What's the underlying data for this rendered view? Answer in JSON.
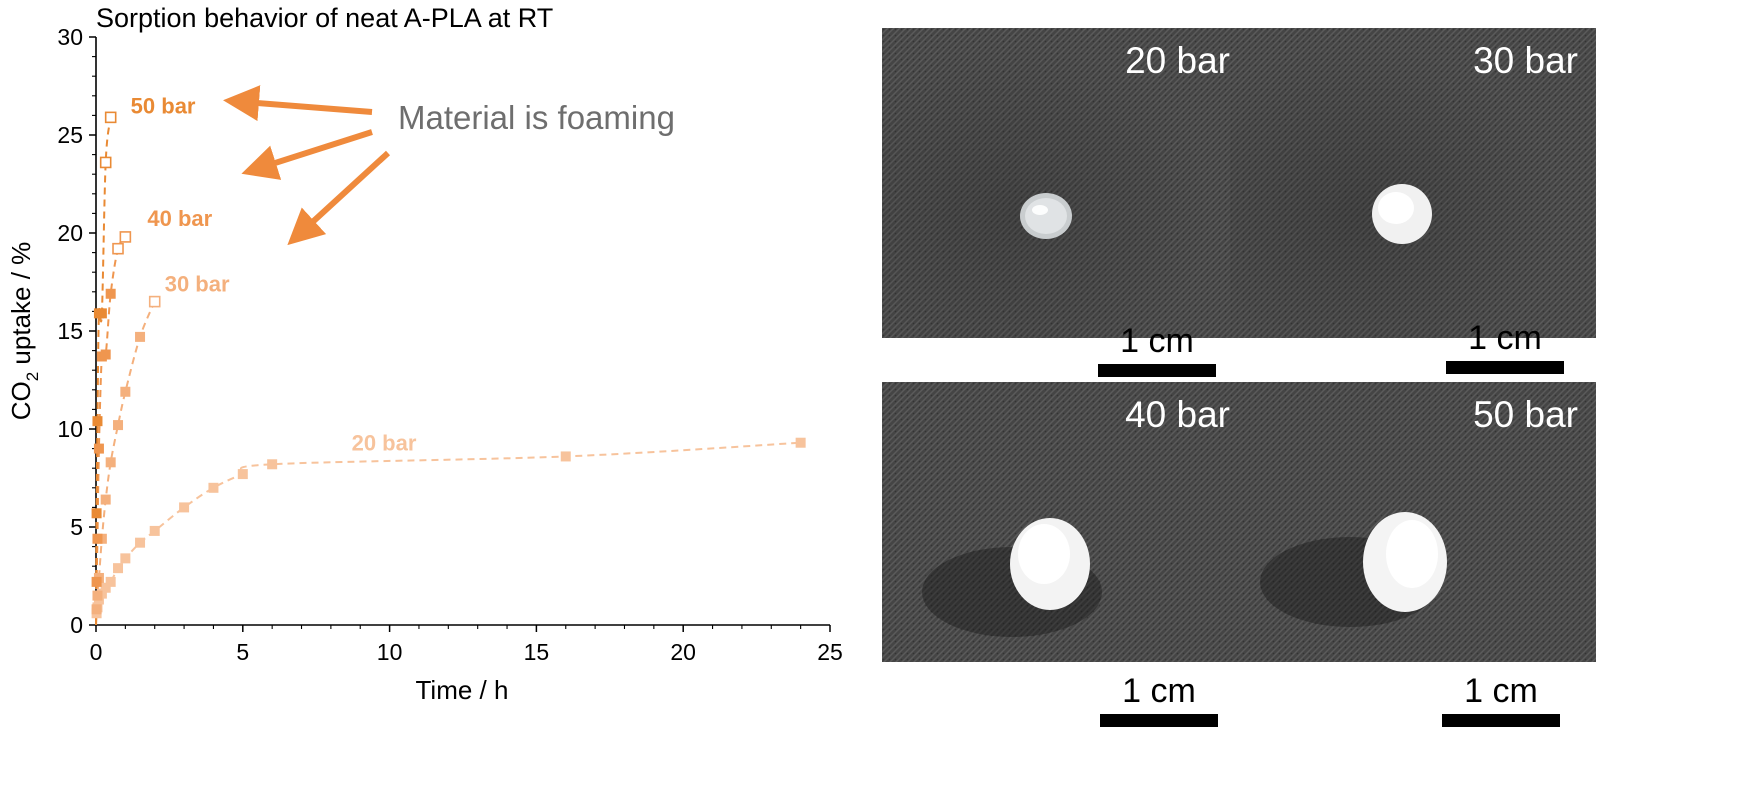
{
  "chart_data": {
    "type": "scatter",
    "title": "Sorption behavior of neat A-PLA at RT",
    "xlabel": "Time / h",
    "ylabel_main": "CO",
    "ylabel_sub": "2",
    "ylabel_rest": " uptake / %",
    "xlim": [
      0,
      25
    ],
    "ylim": [
      0,
      30
    ],
    "xticks": [
      0,
      5,
      10,
      15,
      20,
      25
    ],
    "yticks": [
      0,
      5,
      10,
      15,
      20,
      25,
      30
    ],
    "annotation": "Material is foaming",
    "series": [
      {
        "name": "20 bar",
        "color": "#F7C39C",
        "x": [
          0.02,
          0.05,
          0.1,
          0.2,
          0.33,
          0.5,
          0.75,
          1,
          1.5,
          2,
          3,
          4,
          5,
          6,
          16,
          24
        ],
        "y": [
          0.6,
          0.9,
          1.3,
          1.6,
          1.9,
          2.2,
          2.9,
          3.4,
          4.2,
          4.8,
          6.0,
          7.0,
          7.7,
          8.2,
          8.6,
          9.3
        ],
        "foamed": [
          false,
          false,
          false,
          false,
          false,
          false,
          false,
          false,
          false,
          false,
          false,
          false,
          false,
          false,
          false,
          false
        ]
      },
      {
        "name": "30 bar",
        "color": "#F4B07D",
        "x": [
          0.02,
          0.05,
          0.1,
          0.2,
          0.33,
          0.5,
          0.75,
          1,
          1.5,
          2
        ],
        "y": [
          0.8,
          1.5,
          2.4,
          4.4,
          6.4,
          8.3,
          10.2,
          11.9,
          14.7,
          16.5
        ],
        "foamed": [
          false,
          false,
          false,
          false,
          false,
          false,
          false,
          false,
          false,
          true
        ]
      },
      {
        "name": "40 bar",
        "color": "#EF964F",
        "x": [
          0.02,
          0.05,
          0.1,
          0.2,
          0.33,
          0.5,
          0.75,
          1
        ],
        "y": [
          2.2,
          4.4,
          9.0,
          13.7,
          13.8,
          16.9,
          19.2,
          19.8
        ],
        "foamed": [
          false,
          false,
          false,
          false,
          false,
          false,
          true,
          true
        ]
      },
      {
        "name": "50 bar",
        "color": "#E98A34",
        "x": [
          0.02,
          0.05,
          0.1,
          0.2,
          0.33,
          0.5
        ],
        "y": [
          5.7,
          10.4,
          15.9,
          15.9,
          23.6,
          25.9
        ],
        "foamed": [
          false,
          false,
          false,
          false,
          true,
          true
        ]
      }
    ]
  },
  "photos": [
    {
      "label": "20 bar",
      "scale": "1 cm"
    },
    {
      "label": "30 bar",
      "scale": "1 cm"
    },
    {
      "label": "40 bar",
      "scale": "1 cm"
    },
    {
      "label": "50 bar",
      "scale": "1 cm"
    }
  ]
}
